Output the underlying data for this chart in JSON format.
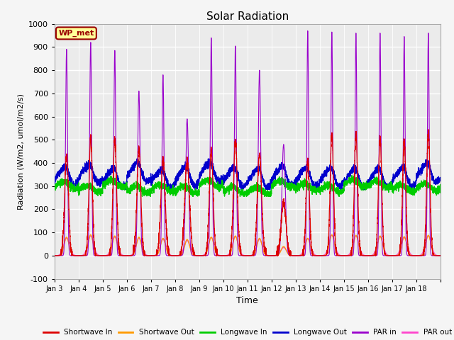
{
  "title": "Solar Radiation",
  "xlabel": "Time",
  "ylabel": "Radiation (W/m2, umol/m2/s)",
  "ylim": [
    -100,
    1000
  ],
  "yticks": [
    -100,
    0,
    100,
    200,
    300,
    400,
    500,
    600,
    700,
    800,
    900,
    1000
  ],
  "xtick_labels": [
    "Jan 3",
    "Jan 4",
    "Jan 5",
    "Jan 6",
    "Jan 7",
    "Jan 8",
    "Jan 9",
    "Jan 10",
    "Jan 11",
    "Jan 12",
    "Jan 13",
    "Jan 14",
    "Jan 15",
    "Jan 16",
    "Jan 17",
    "Jan 18"
  ],
  "colors": {
    "shortwave_in": "#dd0000",
    "shortwave_out": "#ff9900",
    "longwave_in": "#00cc00",
    "longwave_out": "#0000cc",
    "par_in": "#9900cc",
    "par_out": "#ff44cc"
  },
  "legend_labels": [
    "Shortwave In",
    "Shortwave Out",
    "Longwave In",
    "Longwave Out",
    "PAR in",
    "PAR out"
  ],
  "wp_met_label": "WP_met",
  "wp_met_color": "#990000",
  "wp_met_bg": "#ffff99",
  "background_color": "#ebebeb",
  "grid_color": "#ffffff",
  "n_days": 16,
  "points_per_day": 288
}
